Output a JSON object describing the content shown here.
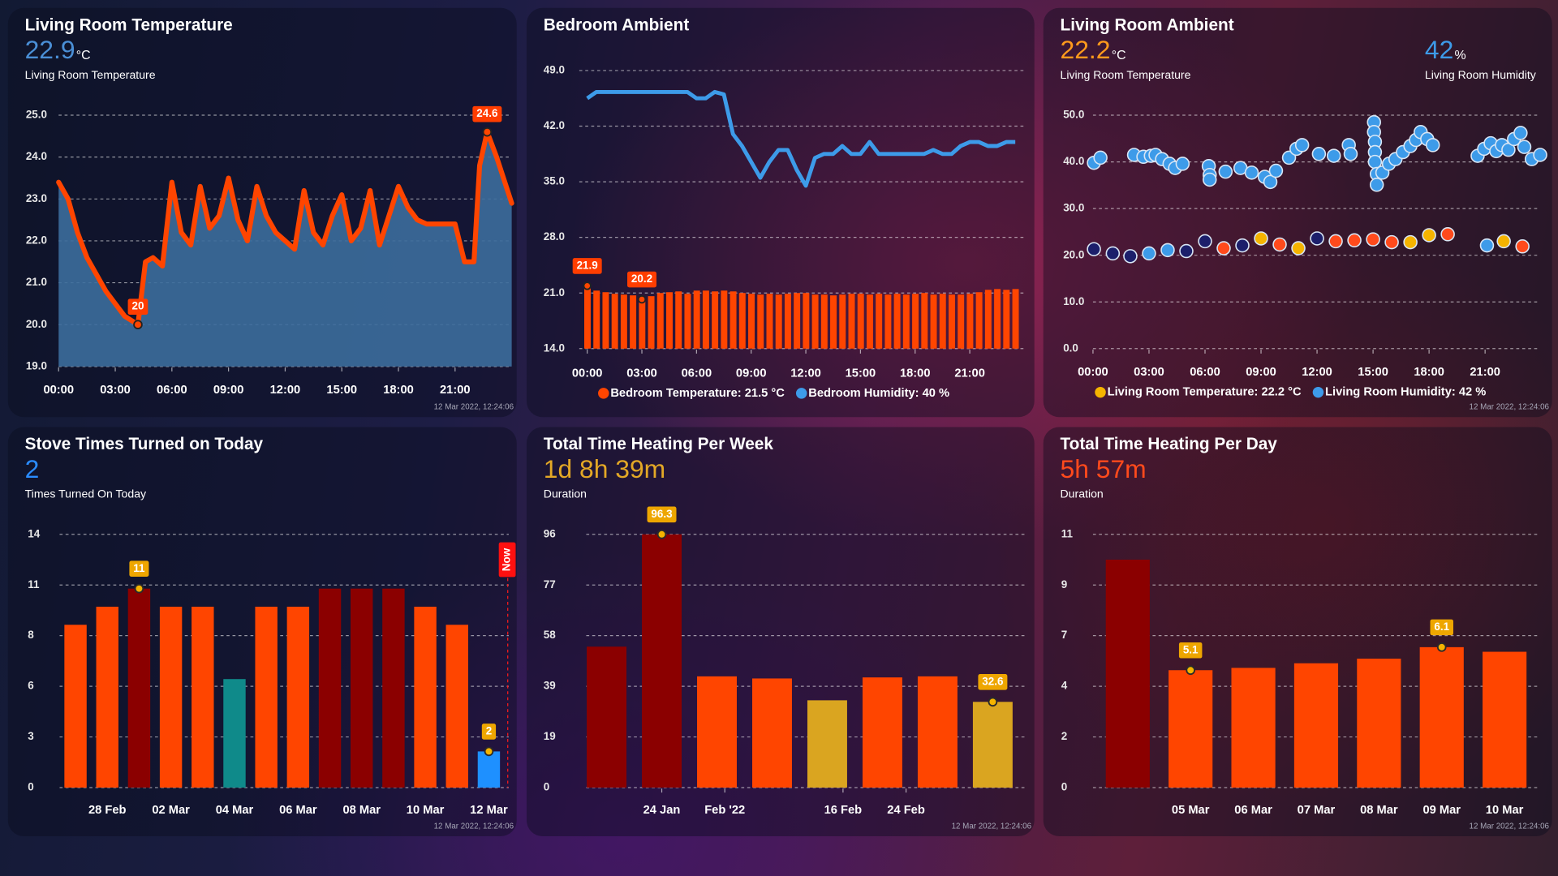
{
  "chart_data": [
    {
      "type": "area",
      "title": "Living Room Temperature",
      "states": [
        {
          "value": 22.9,
          "unit": "°C",
          "label": "Living Room Temperature",
          "color": "#4a8fd6"
        }
      ],
      "x": [
        0,
        0.5,
        1,
        1.5,
        2,
        2.5,
        3,
        3.5,
        4.2,
        4.6,
        5,
        5.5,
        6,
        6.5,
        7,
        7.5,
        8,
        8.5,
        9,
        9.5,
        10,
        10.5,
        11,
        11.5,
        12,
        12.5,
        13,
        13.5,
        14,
        14.5,
        15,
        15.5,
        16,
        16.5,
        17,
        17.5,
        18,
        18.5,
        19,
        19.5,
        20,
        20.5,
        21,
        21.5,
        22,
        22.3,
        22.7,
        23.2,
        24
      ],
      "values": [
        23.4,
        23.0,
        22.2,
        21.6,
        21.2,
        20.8,
        20.5,
        20.2,
        20.0,
        21.5,
        21.6,
        21.4,
        23.4,
        22.2,
        21.9,
        23.3,
        22.3,
        22.6,
        23.5,
        22.5,
        22.0,
        23.3,
        22.6,
        22.2,
        22.0,
        21.8,
        23.2,
        22.2,
        21.9,
        22.6,
        23.1,
        22.0,
        22.3,
        23.2,
        21.9,
        22.6,
        23.3,
        22.8,
        22.5,
        22.4,
        22.4,
        22.4,
        22.4,
        21.5,
        21.5,
        23.8,
        24.6,
        24.0,
        22.9
      ],
      "color": "#ff4500",
      "fill": "#3c6d9c",
      "xlim": [
        0,
        24
      ],
      "xticks": [
        {
          "value": 0,
          "label": "00:00"
        },
        {
          "value": 3,
          "label": "03:00"
        },
        {
          "value": 6,
          "label": "06:00"
        },
        {
          "value": 9,
          "label": "09:00"
        },
        {
          "value": 12,
          "label": "12:00"
        },
        {
          "value": 15,
          "label": "15:00"
        },
        {
          "value": 18,
          "label": "18:00"
        },
        {
          "value": 21,
          "label": "21:00"
        }
      ],
      "ylim": [
        19,
        25
      ],
      "yticks": [
        {
          "value": 19,
          "label": "19.0"
        },
        {
          "value": 20,
          "label": "20.0"
        },
        {
          "value": 21,
          "label": "21.0"
        },
        {
          "value": 22,
          "label": "22.0"
        },
        {
          "value": 23,
          "label": "23.0"
        },
        {
          "value": 24,
          "label": "24.0"
        },
        {
          "value": 25,
          "label": "25.0"
        }
      ],
      "grid": true,
      "point_labels": [
        {
          "x": 4.2,
          "y": 20
        },
        {
          "x": 22.7,
          "y": 24.6
        }
      ],
      "timestamp": "12 Mar 2022, 12:24:06"
    },
    {
      "type": "combo",
      "title": "Bedroom Ambient",
      "x": [
        0,
        0.5,
        1,
        1.5,
        2,
        2.5,
        3,
        3.5,
        4,
        4.5,
        5,
        5.5,
        6,
        6.5,
        7,
        7.5,
        8,
        8.5,
        9,
        9.5,
        10,
        10.5,
        11,
        11.5,
        12,
        12.5,
        13,
        13.5,
        14,
        14.5,
        15,
        15.5,
        16,
        16.5,
        17,
        17.5,
        18,
        18.5,
        19,
        19.5,
        20,
        20.5,
        21,
        21.5,
        22,
        22.5,
        23,
        23.5
      ],
      "series": [
        {
          "name": "Bedroom Temperature: 21.5 °C",
          "kind": "bar",
          "color": "#ff4500",
          "values": [
            21.9,
            21.3,
            21.1,
            20.9,
            20.8,
            20.7,
            20.2,
            20.6,
            21.0,
            21.1,
            21.2,
            20.9,
            21.3,
            21.3,
            21.2,
            21.3,
            21.2,
            21.0,
            20.9,
            20.8,
            20.9,
            20.8,
            20.9,
            21.0,
            21.0,
            20.8,
            20.8,
            20.7,
            20.8,
            20.9,
            20.9,
            20.8,
            20.9,
            20.8,
            20.9,
            20.8,
            20.9,
            21.0,
            20.8,
            20.9,
            20.8,
            20.8,
            20.9,
            21.1,
            21.4,
            21.5,
            21.4,
            21.5
          ]
        },
        {
          "name": "Bedroom Humidity: 40 %",
          "kind": "line",
          "color": "#3d9be9",
          "values": [
            45.5,
            46.3,
            46.3,
            46.3,
            46.3,
            46.3,
            46.3,
            46.3,
            46.3,
            46.3,
            46.3,
            46.3,
            45.5,
            45.5,
            46.3,
            46.0,
            41.0,
            39.5,
            37.5,
            35.5,
            37.5,
            39.0,
            39.0,
            36.5,
            34.5,
            38.0,
            38.5,
            38.5,
            39.5,
            38.5,
            38.5,
            40.0,
            38.5,
            38.5,
            38.5,
            38.5,
            38.5,
            38.5,
            39.0,
            38.5,
            38.5,
            39.5,
            40.0,
            40.0,
            39.5,
            39.5,
            40.0,
            40.0
          ]
        }
      ],
      "xlim": [
        0,
        24
      ],
      "xticks": [
        {
          "value": 0,
          "label": "00:00"
        },
        {
          "value": 3,
          "label": "03:00"
        },
        {
          "value": 6,
          "label": "06:00"
        },
        {
          "value": 9,
          "label": "09:00"
        },
        {
          "value": 12,
          "label": "12:00"
        },
        {
          "value": 15,
          "label": "15:00"
        },
        {
          "value": 18,
          "label": "18:00"
        },
        {
          "value": 21,
          "label": "21:00"
        }
      ],
      "ylim": [
        14,
        49
      ],
      "yticks": [
        {
          "value": 14,
          "label": "14.0"
        },
        {
          "value": 21,
          "label": "21.0"
        },
        {
          "value": 28,
          "label": "28.0"
        },
        {
          "value": 35,
          "label": "35.0"
        },
        {
          "value": 42,
          "label": "42.0"
        },
        {
          "value": 49,
          "label": "49.0"
        }
      ],
      "grid": true,
      "point_labels": [
        {
          "x": 0,
          "y": 21.9
        },
        {
          "x": 3,
          "y": 20.2
        }
      ]
    },
    {
      "type": "scatter",
      "title": "Living Room Ambient",
      "states": [
        {
          "value": 22.2,
          "unit": "°C",
          "label": "Living Room Temperature",
          "color": "#ff9a1c"
        },
        {
          "value": 42,
          "unit": "%",
          "label": "Living Room Humidity",
          "color": "#3d9be9"
        }
      ],
      "series": [
        {
          "name": "Living Room Temperature: 22.2 °C",
          "color": "#f5b400",
          "x": [
            0.05,
            1.06,
            2.0,
            3.0,
            4.0,
            5.0,
            6.0,
            7.0,
            8.0,
            9.0,
            10.0,
            11.0,
            12.0,
            13.0,
            14.0,
            15.0,
            16.0,
            17.0,
            18.0,
            19.0,
            21.1,
            22.0,
            23.0
          ],
          "values": [
            21.3,
            20.4,
            19.8,
            20.4,
            21.1,
            20.9,
            23.0,
            21.5,
            22.1,
            23.6,
            22.3,
            21.5,
            23.6,
            23.0,
            23.2,
            23.4,
            22.8,
            22.8,
            24.3,
            24.5,
            22.1,
            23.0,
            21.9
          ],
          "colors": [
            "#1c1f6b",
            "#1c1f6b",
            "#1c1f6b",
            "#3d9be9",
            "#3d9be9",
            "#1c1f6b",
            "#1c1f6b",
            "#ff4a1c",
            "#1c1f6b",
            "#f5b400",
            "#ff4a1c",
            "#f5b400",
            "#1c1f6b",
            "#ff4a1c",
            "#ff4a1c",
            "#ff4a1c",
            "#ff4a1c",
            "#f5b400",
            "#f5b400",
            "#ff4a1c",
            "#3d9be9",
            "#f5b400",
            "#ff4a1c"
          ]
        },
        {
          "name": "Living Room Humidity: 42 %",
          "color": "#3d9be9",
          "x": [
            0.05,
            0.4,
            2.2,
            2.7,
            3.1,
            3.35,
            3.7,
            4.1,
            4.4,
            4.8,
            6.2,
            6.25,
            6.25,
            7.1,
            7.9,
            8.5,
            9.2,
            9.5,
            9.8,
            10.5,
            10.9,
            11.2,
            12.1,
            12.9,
            13.7,
            13.8,
            15.05,
            15.05,
            15.1,
            15.1,
            15.1,
            15.2,
            15.2,
            15.5,
            15.85,
            16.2,
            16.6,
            17.0,
            17.3,
            17.55,
            17.9,
            18.2,
            20.6,
            20.95,
            21.3,
            21.6,
            21.9,
            22.25,
            22.55,
            22.9,
            23.1,
            23.5,
            23.95
          ],
          "values": [
            39.8,
            40.9,
            41.5,
            41.1,
            41.3,
            41.5,
            40.6,
            39.6,
            38.7,
            39.6,
            39.1,
            37.2,
            36.2,
            37.9,
            38.7,
            37.7,
            36.8,
            35.7,
            38.1,
            40.9,
            42.8,
            43.6,
            41.7,
            41.3,
            43.6,
            41.7,
            48.5,
            46.4,
            44.3,
            42.1,
            40.0,
            37.4,
            35.1,
            37.7,
            39.6,
            40.6,
            42.1,
            43.4,
            44.7,
            46.4,
            44.9,
            43.6,
            41.3,
            42.8,
            44.0,
            42.3,
            43.6,
            42.6,
            44.9,
            46.2,
            43.2,
            40.6,
            41.5
          ]
        }
      ],
      "xlim": [
        0,
        24
      ],
      "xticks": [
        {
          "value": 0,
          "label": "00:00"
        },
        {
          "value": 3,
          "label": "03:00"
        },
        {
          "value": 6,
          "label": "06:00"
        },
        {
          "value": 9,
          "label": "09:00"
        },
        {
          "value": 12,
          "label": "12:00"
        },
        {
          "value": 15,
          "label": "15:00"
        },
        {
          "value": 18,
          "label": "18:00"
        },
        {
          "value": 21,
          "label": "21:00"
        }
      ],
      "ylim": [
        0,
        50
      ],
      "yticks": [
        {
          "value": 0,
          "label": "0.0"
        },
        {
          "value": 10,
          "label": "10.0"
        },
        {
          "value": 20,
          "label": "20.0"
        },
        {
          "value": 30,
          "label": "30.0"
        },
        {
          "value": 40,
          "label": "40.0"
        },
        {
          "value": 50,
          "label": "50.0"
        }
      ],
      "grid": true,
      "timestamp": "12 Mar 2022, 12:24:06"
    },
    {
      "type": "bar",
      "title": "Stove Times Turned on Today",
      "states": [
        {
          "value": 2,
          "unit": "",
          "label": "Times Turned On Today",
          "color": "#2a8cff"
        }
      ],
      "categories": [
        null,
        "28 Feb",
        null,
        "02 Mar",
        null,
        "04 Mar",
        null,
        "06 Mar",
        null,
        "08 Mar",
        null,
        "10 Mar",
        null,
        "12 Mar"
      ],
      "values": [
        9,
        10,
        11,
        10,
        10,
        6,
        10,
        10,
        11,
        11,
        11,
        10,
        9,
        2
      ],
      "value_labels": [
        null,
        null,
        "11",
        null,
        null,
        null,
        null,
        null,
        null,
        null,
        null,
        null,
        null,
        "2"
      ],
      "colors": [
        "#ff4500",
        "#ff4500",
        "#8b0000",
        "#ff4500",
        "#ff4500",
        "#0f8a8a",
        "#ff4500",
        "#ff4500",
        "#8b0000",
        "#8b0000",
        "#8b0000",
        "#ff4500",
        "#ff4500",
        "#1e90ff"
      ],
      "ylim": [
        0,
        14
      ],
      "yticks": [
        0,
        {
          "value": 2.8,
          "label": "3"
        },
        {
          "value": 5.6,
          "label": "6"
        },
        {
          "value": 8.4,
          "label": "8"
        },
        {
          "value": 11.2,
          "label": "11"
        },
        14
      ],
      "grid": true,
      "now_label": "Now",
      "timestamp": "12 Mar 2022, 12:24:06"
    },
    {
      "type": "bar",
      "title": "Total Time Heating Per Week",
      "states": [
        {
          "value": "1d 8h 39m",
          "unit": "",
          "label": "Duration",
          "color": "#e3a826"
        }
      ],
      "x": [
        "2022-01-17",
        "2022-01-24",
        "2022-01-31",
        "2022-02-07",
        "2022-02-14",
        "2022-02-21",
        "2022-02-28",
        "2022-03-07"
      ],
      "values": [
        53.6,
        96.3,
        42.3,
        41.5,
        33.2,
        41.9,
        42.3,
        32.6
      ],
      "value_labels": [
        null,
        "96.3",
        null,
        null,
        null,
        null,
        null,
        "32.6"
      ],
      "colors": [
        "#8b0000",
        "#8b0000",
        "#ff4500",
        "#ff4500",
        "#daa520",
        "#ff4500",
        "#ff4500",
        "#daa520"
      ],
      "xlim": [
        "2022-01-14",
        "2022-03-10"
      ],
      "xticks": [
        {
          "value": "2022-01-24",
          "label": "24 Jan"
        },
        {
          "value": "2022-02-01",
          "label": "Feb '22"
        },
        {
          "value": "2022-02-16",
          "label": "16 Feb"
        },
        {
          "value": "2022-02-24",
          "label": "24 Feb"
        }
      ],
      "ylim": [
        0,
        96.3
      ],
      "yticks": [
        0,
        {
          "value": 19.26,
          "label": "19"
        },
        {
          "value": 38.52,
          "label": "39"
        },
        {
          "value": 57.78,
          "label": "58"
        },
        {
          "value": 77.04,
          "label": "77"
        },
        {
          "value": 96.3,
          "label": "96"
        }
      ],
      "grid": true,
      "timestamp": "12 Mar 2022, 12:24:06"
    },
    {
      "type": "bar",
      "title": "Total Time Heating Per Day",
      "states": [
        {
          "value": "5h 57m",
          "unit": "",
          "label": "Duration",
          "color": "#ff4a1c"
        }
      ],
      "categories": [
        null,
        "05 Mar",
        "06 Mar",
        "07 Mar",
        "08 Mar",
        "09 Mar",
        "10 Mar"
      ],
      "values": [
        9.9,
        5.1,
        5.2,
        5.4,
        5.6,
        6.1,
        5.9
      ],
      "value_labels": [
        null,
        "5.1",
        null,
        null,
        null,
        "6.1",
        null
      ],
      "colors": [
        "#8b0000",
        "#ff4500",
        "#ff4500",
        "#ff4500",
        "#ff4500",
        "#ff4500",
        "#ff4500"
      ],
      "ylim": [
        0,
        11
      ],
      "yticks": [
        0,
        {
          "value": 2.2,
          "label": "2"
        },
        {
          "value": 4.4,
          "label": "4"
        },
        {
          "value": 6.6,
          "label": "7"
        },
        {
          "value": 8.8,
          "label": "9"
        },
        11
      ],
      "grid": true,
      "timestamp": "12 Mar 2022, 12:24:06"
    }
  ]
}
